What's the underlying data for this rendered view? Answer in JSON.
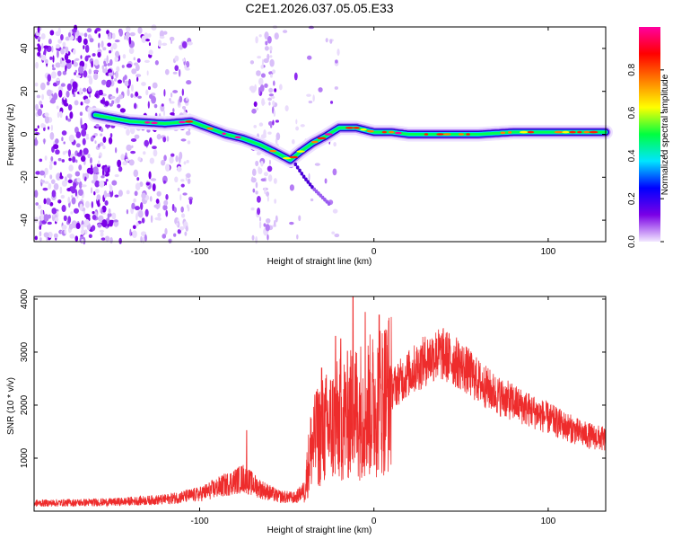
{
  "chart_data": [
    {
      "type": "heatmap",
      "title": "C2E1.2026.037.05.05.E33",
      "xlabel": "Height of straight line (km)",
      "ylabel": "Frequency (Hz)",
      "xlim": [
        -195,
        133
      ],
      "ylim": [
        -50,
        50
      ],
      "xticks": [
        -100,
        0,
        100
      ],
      "yticks": [
        -40,
        -20,
        0,
        20,
        40
      ],
      "colorbar": {
        "label": "Normalized spectral amplitude",
        "range": [
          0.0,
          1.0
        ],
        "ticks": [
          "0.0",
          "0.2",
          "0.4",
          "0.6",
          "0.8"
        ],
        "colors": [
          "#f2e8ff",
          "#7a00e6",
          "#0000ff",
          "#00e5ff",
          "#00ff40",
          "#ffff00",
          "#ff8000",
          "#ff0000",
          "#ff00a0"
        ]
      },
      "ridge": {
        "x": [
          -160,
          -140,
          -120,
          -105,
          -95,
          -85,
          -75,
          -65,
          -55,
          -48,
          -42,
          -35,
          -28,
          -20,
          -10,
          0,
          10,
          20,
          40,
          60,
          80,
          100,
          120,
          133
        ],
        "frequency": [
          9,
          6,
          5,
          6,
          3,
          0,
          -2,
          -5,
          -9,
          -12,
          -8,
          -4,
          -1,
          3,
          3,
          1,
          1,
          0,
          0,
          0,
          1,
          1,
          1,
          1
        ]
      },
      "secondary_branch": {
        "x": [
          -45,
          -40,
          -35,
          -30,
          -25
        ],
        "frequency": [
          -14,
          -20,
          -25,
          -29,
          -33
        ]
      }
    },
    {
      "type": "line",
      "xlabel": "Height of straight line (km)",
      "ylabel": "SNR (10 * v/v)",
      "xlim": [
        -195,
        133
      ],
      "ylim": [
        0,
        4050
      ],
      "xticks": [
        -100,
        0,
        100
      ],
      "yticks": [
        1000,
        2000,
        3000,
        4000
      ],
      "series": [
        {
          "name": "SNR",
          "color": "#ee2c2c",
          "envelope_x": [
            -195,
            -150,
            -120,
            -100,
            -85,
            -75,
            -65,
            -55,
            -45,
            -40,
            -36,
            -30,
            -20,
            -10,
            0,
            10,
            20,
            30,
            35,
            40,
            50,
            60,
            70,
            80,
            90,
            100,
            110,
            120,
            133
          ],
          "envelope_y": [
            150,
            170,
            220,
            320,
            500,
            620,
            420,
            280,
            250,
            400,
            1200,
            1500,
            1700,
            1900,
            2000,
            2300,
            2600,
            2850,
            2950,
            2950,
            2750,
            2450,
            2200,
            2050,
            1900,
            1750,
            1600,
            1450,
            1350
          ],
          "peaks": [
            {
              "x": -73,
              "y": 1520
            },
            {
              "x": -33,
              "y": 2250
            },
            {
              "x": -30,
              "y": 2700
            },
            {
              "x": -22,
              "y": 3300
            },
            {
              "x": -19,
              "y": 3250
            },
            {
              "x": -12,
              "y": 4050
            },
            {
              "x": -5,
              "y": 3750
            },
            {
              "x": 3,
              "y": 3700
            },
            {
              "x": 36,
              "y": 3250
            }
          ]
        }
      ]
    }
  ]
}
